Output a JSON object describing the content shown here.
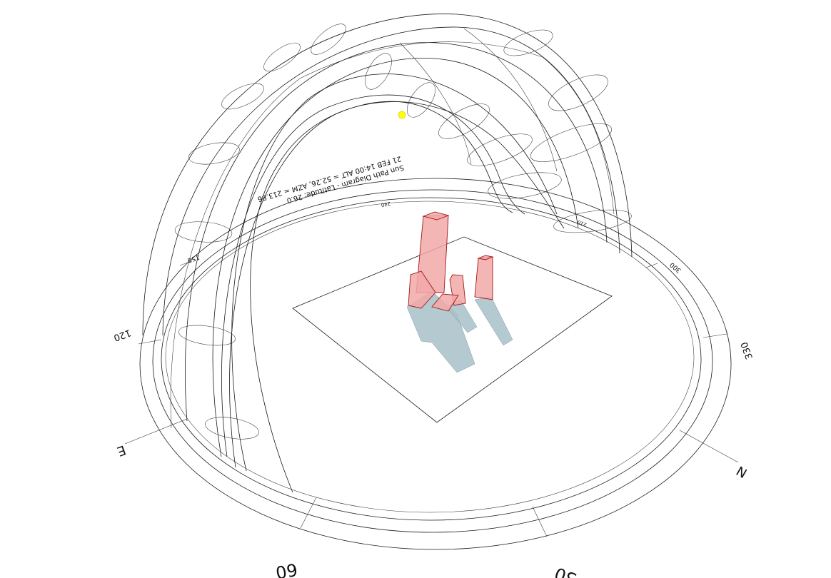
{
  "diagram": {
    "caption_line1": "Sun Path Diagram - Latitude: 26.0",
    "caption_line2": "21 FEB 14:00 ALT = 52.26, AZM = 213.86",
    "compass": {
      "east": "E",
      "north": "N"
    },
    "bearings": [
      "60",
      "30",
      "120",
      "150",
      "330",
      "300",
      "240",
      "210"
    ],
    "colors": {
      "line": "#1a1a1a",
      "sun": "#ffff00",
      "building_fill": "#f2a8a8",
      "building_edge": "#a01818",
      "shadow": "#a8c0c8"
    }
  }
}
